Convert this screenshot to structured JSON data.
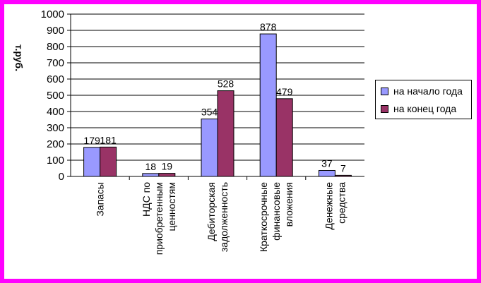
{
  "chart_data": {
    "type": "bar",
    "ylabel": "т.руб.",
    "ylim": [
      0,
      1000
    ],
    "ytick_step": 100,
    "grid": true,
    "legend_position": "right",
    "categories": [
      [
        "Запасы"
      ],
      [
        "НДС по",
        "приобретенным",
        "ценностям"
      ],
      [
        "Дебиторская",
        "задолженность"
      ],
      [
        "Краткосрочные",
        "финансовые",
        "вложения"
      ],
      [
        "Денежные",
        "средства"
      ]
    ],
    "series": [
      {
        "name": "на начало года",
        "color": "#9999ff",
        "values": [
          179,
          18,
          354,
          878,
          37
        ]
      },
      {
        "name": "на конец года",
        "color": "#993366",
        "values": [
          181,
          19,
          528,
          479,
          7
        ]
      }
    ]
  }
}
